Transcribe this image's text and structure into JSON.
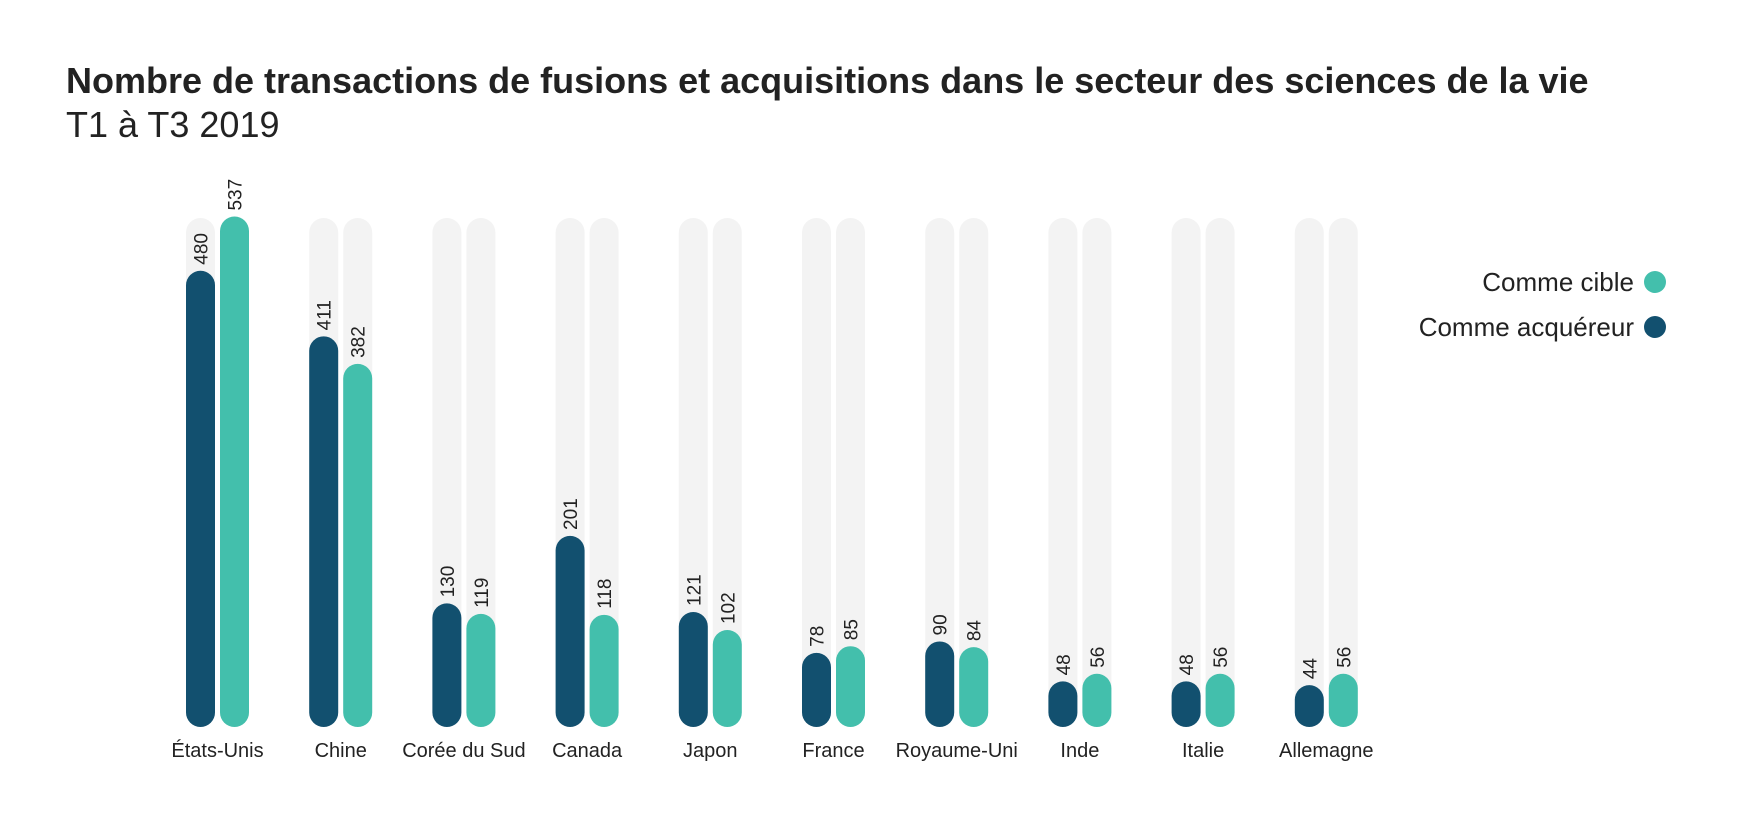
{
  "header": {
    "title": "Nombre de transactions de fusions et acquisitions dans le secteur des sciences de la vie",
    "subtitle": "T1 à T3 2019"
  },
  "chart_data": {
    "type": "bar",
    "title": "Nombre de transactions de fusions et acquisitions dans le secteur des sciences de la vie",
    "subtitle": "T1 à T3 2019",
    "categories": [
      "États-Unis",
      "Chine",
      "Corée du Sud",
      "Canada",
      "Japon",
      "France",
      "Royaume-Uni",
      "Inde",
      "Italie",
      "Allemagne"
    ],
    "series": [
      {
        "name": "Comme acquéreur",
        "color": "#12506f",
        "values": [
          480,
          411,
          130,
          201,
          121,
          78,
          90,
          48,
          48,
          44
        ]
      },
      {
        "name": "Comme cible",
        "color": "#43bfac",
        "values": [
          537,
          382,
          119,
          118,
          102,
          85,
          84,
          56,
          56,
          56
        ]
      }
    ],
    "ylim": [
      0,
      600
    ],
    "grid": false,
    "background_track_color": "#f3f3f3",
    "legend": {
      "placement": "top-right",
      "order": [
        "Comme cible",
        "Comme acquéreur"
      ]
    },
    "xlabel": "",
    "ylabel": ""
  }
}
